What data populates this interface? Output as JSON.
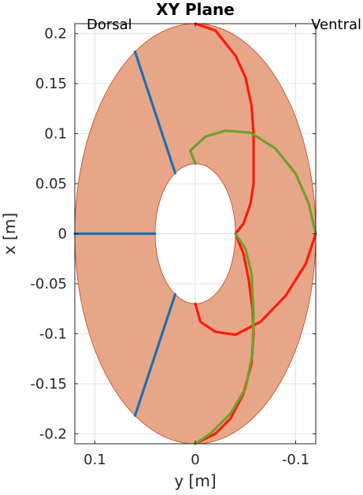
{
  "chart_data": {
    "type": "line",
    "title": "XY Plane",
    "xlabel": "y [m]",
    "ylabel": "x [m]",
    "x_axis_reversed": true,
    "xlim": [
      -0.12,
      0.12
    ],
    "ylim": [
      -0.21,
      0.21
    ],
    "xticks": [
      0.1,
      0,
      -0.1
    ],
    "xtick_labels": [
      "0.1",
      "0",
      "-0.1"
    ],
    "yticks": [
      0.2,
      0.15,
      0.1,
      0.05,
      0,
      -0.05,
      -0.1,
      -0.15,
      -0.2
    ],
    "ytick_labels": [
      "0.2",
      "0.15",
      "0.1",
      "0.05",
      "0",
      "-0.05",
      "-0.1",
      "-0.15",
      "-0.2"
    ],
    "grid": true,
    "annotations": [
      {
        "text": "Dorsal",
        "position": "top-left"
      },
      {
        "text": "Ventral",
        "position": "top-right"
      }
    ],
    "region": {
      "shape": "elliptical ring",
      "outer": {
        "center": [
          0,
          0
        ],
        "semi_y": 0.12,
        "semi_x": 0.21
      },
      "inner": {
        "center": [
          0,
          0
        ],
        "semi_y": 0.04,
        "semi_x": 0.07
      },
      "fill": "#e8a688",
      "edge": "#c0431a"
    },
    "series": [
      {
        "color": "#1f6fb2",
        "points": [
          [
            0.12,
            0
          ],
          [
            0.04,
            0
          ]
        ]
      },
      {
        "color": "#1f6fb2",
        "points": [
          [
            0.02,
            0.0606
          ],
          [
            0.06,
            0.1819
          ]
        ]
      },
      {
        "color": "#1f6fb2",
        "points": [
          [
            0.02,
            -0.0606
          ],
          [
            0.06,
            -0.1819
          ]
        ]
      },
      {
        "color": "#ff1a0a",
        "points": [
          [
            0,
            0.21
          ],
          [
            -0.02,
            0.2032
          ],
          [
            -0.04,
            0.178
          ],
          [
            -0.05,
            0.156
          ],
          [
            -0.056,
            0.128
          ],
          [
            -0.058,
            0.1
          ],
          [
            -0.058,
            0.05
          ],
          [
            -0.055,
            0.03
          ],
          [
            -0.048,
            0.01
          ],
          [
            -0.04,
            0
          ]
        ]
      },
      {
        "color": "#ff1a0a",
        "points": [
          [
            -0.04,
            0
          ],
          [
            -0.048,
            -0.02
          ],
          [
            -0.053,
            -0.045
          ],
          [
            -0.057,
            -0.075
          ],
          [
            -0.058,
            -0.1
          ],
          [
            -0.056,
            -0.13
          ],
          [
            -0.048,
            -0.16
          ],
          [
            -0.035,
            -0.185
          ],
          [
            -0.02,
            -0.2
          ],
          [
            0,
            -0.21
          ]
        ]
      },
      {
        "color": "#ff1a0a",
        "points": [
          [
            -0.12,
            0
          ],
          [
            -0.11,
            -0.03
          ],
          [
            -0.09,
            -0.062
          ],
          [
            -0.065,
            -0.088
          ],
          [
            -0.04,
            -0.101
          ],
          [
            -0.02,
            -0.098
          ],
          [
            -0.005,
            -0.088
          ],
          [
            0,
            -0.07
          ]
        ]
      },
      {
        "color": "#6ea02a",
        "points": [
          [
            0,
            0.07
          ],
          [
            0.005,
            0.083
          ],
          [
            -0.01,
            0.097
          ],
          [
            -0.03,
            0.103
          ],
          [
            -0.055,
            0.101
          ],
          [
            -0.08,
            0.085
          ],
          [
            -0.1,
            0.06
          ],
          [
            -0.113,
            0.03
          ],
          [
            -0.12,
            0
          ]
        ]
      },
      {
        "color": "#6ea02a",
        "points": [
          [
            -0.04,
            0
          ],
          [
            -0.05,
            -0.015
          ],
          [
            -0.056,
            -0.04
          ],
          [
            -0.058,
            -0.08
          ],
          [
            -0.057,
            -0.12
          ],
          [
            -0.05,
            -0.155
          ],
          [
            -0.035,
            -0.18
          ],
          [
            -0.015,
            -0.2
          ],
          [
            0,
            -0.21
          ]
        ]
      }
    ]
  }
}
